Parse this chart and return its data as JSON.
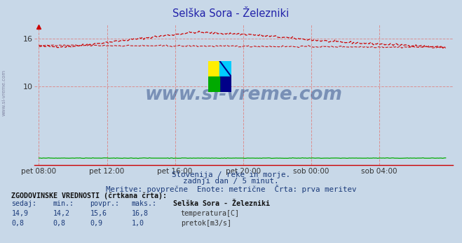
{
  "title": "Selška Sora - Železniki",
  "title_color": "#2222aa",
  "bg_color": "#c8d8e8",
  "plot_bg_color": "#c8d8e8",
  "grid_color": "#dd8888",
  "axis_color": "#cc0000",
  "x_tick_labels": [
    "pet 08:00",
    "pet 12:00",
    "pet 16:00",
    "pet 20:00",
    "sob 00:00",
    "sob 04:00"
  ],
  "x_tick_positions": [
    0,
    48,
    96,
    144,
    192,
    240
  ],
  "ylim_low": 0.0,
  "ylim_high": 17.8,
  "yticks": [
    10,
    16
  ],
  "n_points": 288,
  "temp_color": "#cc0000",
  "pretok_color": "#00aa00",
  "watermark": "www.si-vreme.com",
  "watermark_color": "#1a3a7a",
  "sub_text1": "Slovenija / reke in morje.",
  "sub_text2": "zadnji dan / 5 minut.",
  "sub_text3": "Meritve: povprečne  Enote: metrične  Črta: prva meritev",
  "legend_title": "Selška Sora - Železniki",
  "table_header": "ZGODOVINSKE VREDNOSTI (črtkana črta):",
  "col_headers": [
    "sedaj:",
    "min.:",
    "povpr.:",
    "maks.:"
  ],
  "row1": [
    "14,9",
    "14,2",
    "15,6",
    "16,8"
  ],
  "row2": [
    "0,8",
    "0,8",
    "0,9",
    "1,0"
  ],
  "row1_label": "temperatura[C]",
  "row2_label": "pretok[m3/s]",
  "left_label": "www.si-vreme.com"
}
